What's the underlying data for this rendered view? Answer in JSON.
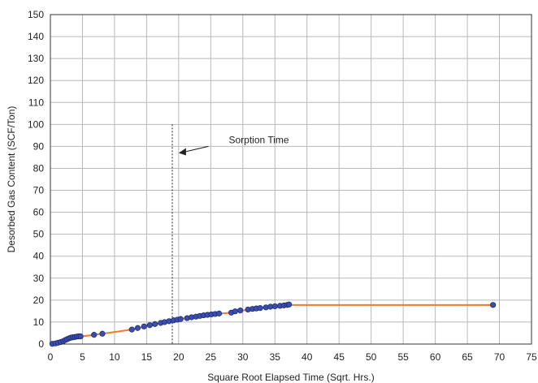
{
  "chart_data": {
    "type": "scatter",
    "xlabel": "Square Root Elapsed Time (Sqrt. Hrs.)",
    "ylabel": "Desorbed Gas Content (SCF/Ton)",
    "xlim": [
      0,
      75
    ],
    "ylim": [
      0,
      150
    ],
    "x_ticks": [
      0,
      5,
      10,
      15,
      20,
      25,
      30,
      35,
      40,
      45,
      50,
      55,
      60,
      65,
      70,
      75
    ],
    "y_ticks": [
      0,
      10,
      20,
      30,
      40,
      50,
      60,
      70,
      80,
      90,
      100,
      110,
      120,
      130,
      140,
      150
    ],
    "grid": true,
    "colors": {
      "points": "#3b4fa8",
      "point_edge": "#1f2d7a",
      "line": "#f07a2a",
      "grid": "#b8b8b8"
    },
    "series": [
      {
        "points": [
          [
            0.3,
            0.1
          ],
          [
            0.8,
            0.3
          ],
          [
            1.2,
            0.6
          ],
          [
            1.6,
            0.9
          ],
          [
            2.0,
            1.3
          ],
          [
            2.3,
            1.8
          ],
          [
            2.6,
            2.2
          ],
          [
            2.9,
            2.6
          ],
          [
            3.2,
            2.9
          ],
          [
            3.5,
            3.1
          ],
          [
            3.8,
            3.2
          ],
          [
            4.1,
            3.4
          ],
          [
            4.4,
            3.5
          ],
          [
            4.7,
            3.5
          ],
          [
            6.8,
            4.2
          ],
          [
            8.1,
            4.7
          ],
          [
            12.7,
            6.6
          ],
          [
            13.6,
            7.3
          ],
          [
            14.6,
            8.0
          ],
          [
            15.5,
            8.6
          ],
          [
            16.3,
            9.1
          ],
          [
            17.2,
            9.6
          ],
          [
            17.8,
            10.0
          ],
          [
            18.5,
            10.4
          ],
          [
            19.2,
            10.8
          ],
          [
            19.8,
            11.1
          ],
          [
            20.3,
            11.4
          ],
          [
            21.3,
            11.8
          ],
          [
            22.0,
            12.2
          ],
          [
            22.7,
            12.5
          ],
          [
            23.3,
            12.8
          ],
          [
            23.9,
            13.1
          ],
          [
            24.5,
            13.3
          ],
          [
            25.1,
            13.5
          ],
          [
            25.7,
            13.7
          ],
          [
            26.3,
            13.9
          ],
          [
            28.2,
            14.3
          ],
          [
            28.8,
            14.9
          ],
          [
            29.6,
            15.3
          ],
          [
            30.8,
            15.7
          ],
          [
            31.5,
            16.0
          ],
          [
            32.1,
            16.2
          ],
          [
            32.7,
            16.4
          ],
          [
            33.6,
            16.7
          ],
          [
            34.3,
            17.0
          ],
          [
            35.0,
            17.2
          ],
          [
            35.8,
            17.4
          ],
          [
            36.4,
            17.6
          ],
          [
            36.9,
            17.8
          ],
          [
            37.2,
            18.0
          ],
          [
            69.0,
            17.8
          ]
        ],
        "line": [
          [
            0,
            0
          ],
          [
            1,
            0.5
          ],
          [
            2,
            1.3
          ],
          [
            3,
            2.7
          ],
          [
            4,
            3.3
          ],
          [
            5,
            3.5
          ],
          [
            6.8,
            4.2
          ],
          [
            8.1,
            4.7
          ],
          [
            12.7,
            6.6
          ],
          [
            16.3,
            9.1
          ],
          [
            20.3,
            11.4
          ],
          [
            24.5,
            13.3
          ],
          [
            28.2,
            14.3
          ],
          [
            30.8,
            15.7
          ],
          [
            34.3,
            17.0
          ],
          [
            37.2,
            17.8
          ],
          [
            69.0,
            17.8
          ]
        ]
      }
    ],
    "annotations": [
      {
        "text": "Sorption Time",
        "x": 19.0,
        "line_y_top": 100,
        "arrow_target": [
          20.0,
          87
        ]
      }
    ]
  }
}
